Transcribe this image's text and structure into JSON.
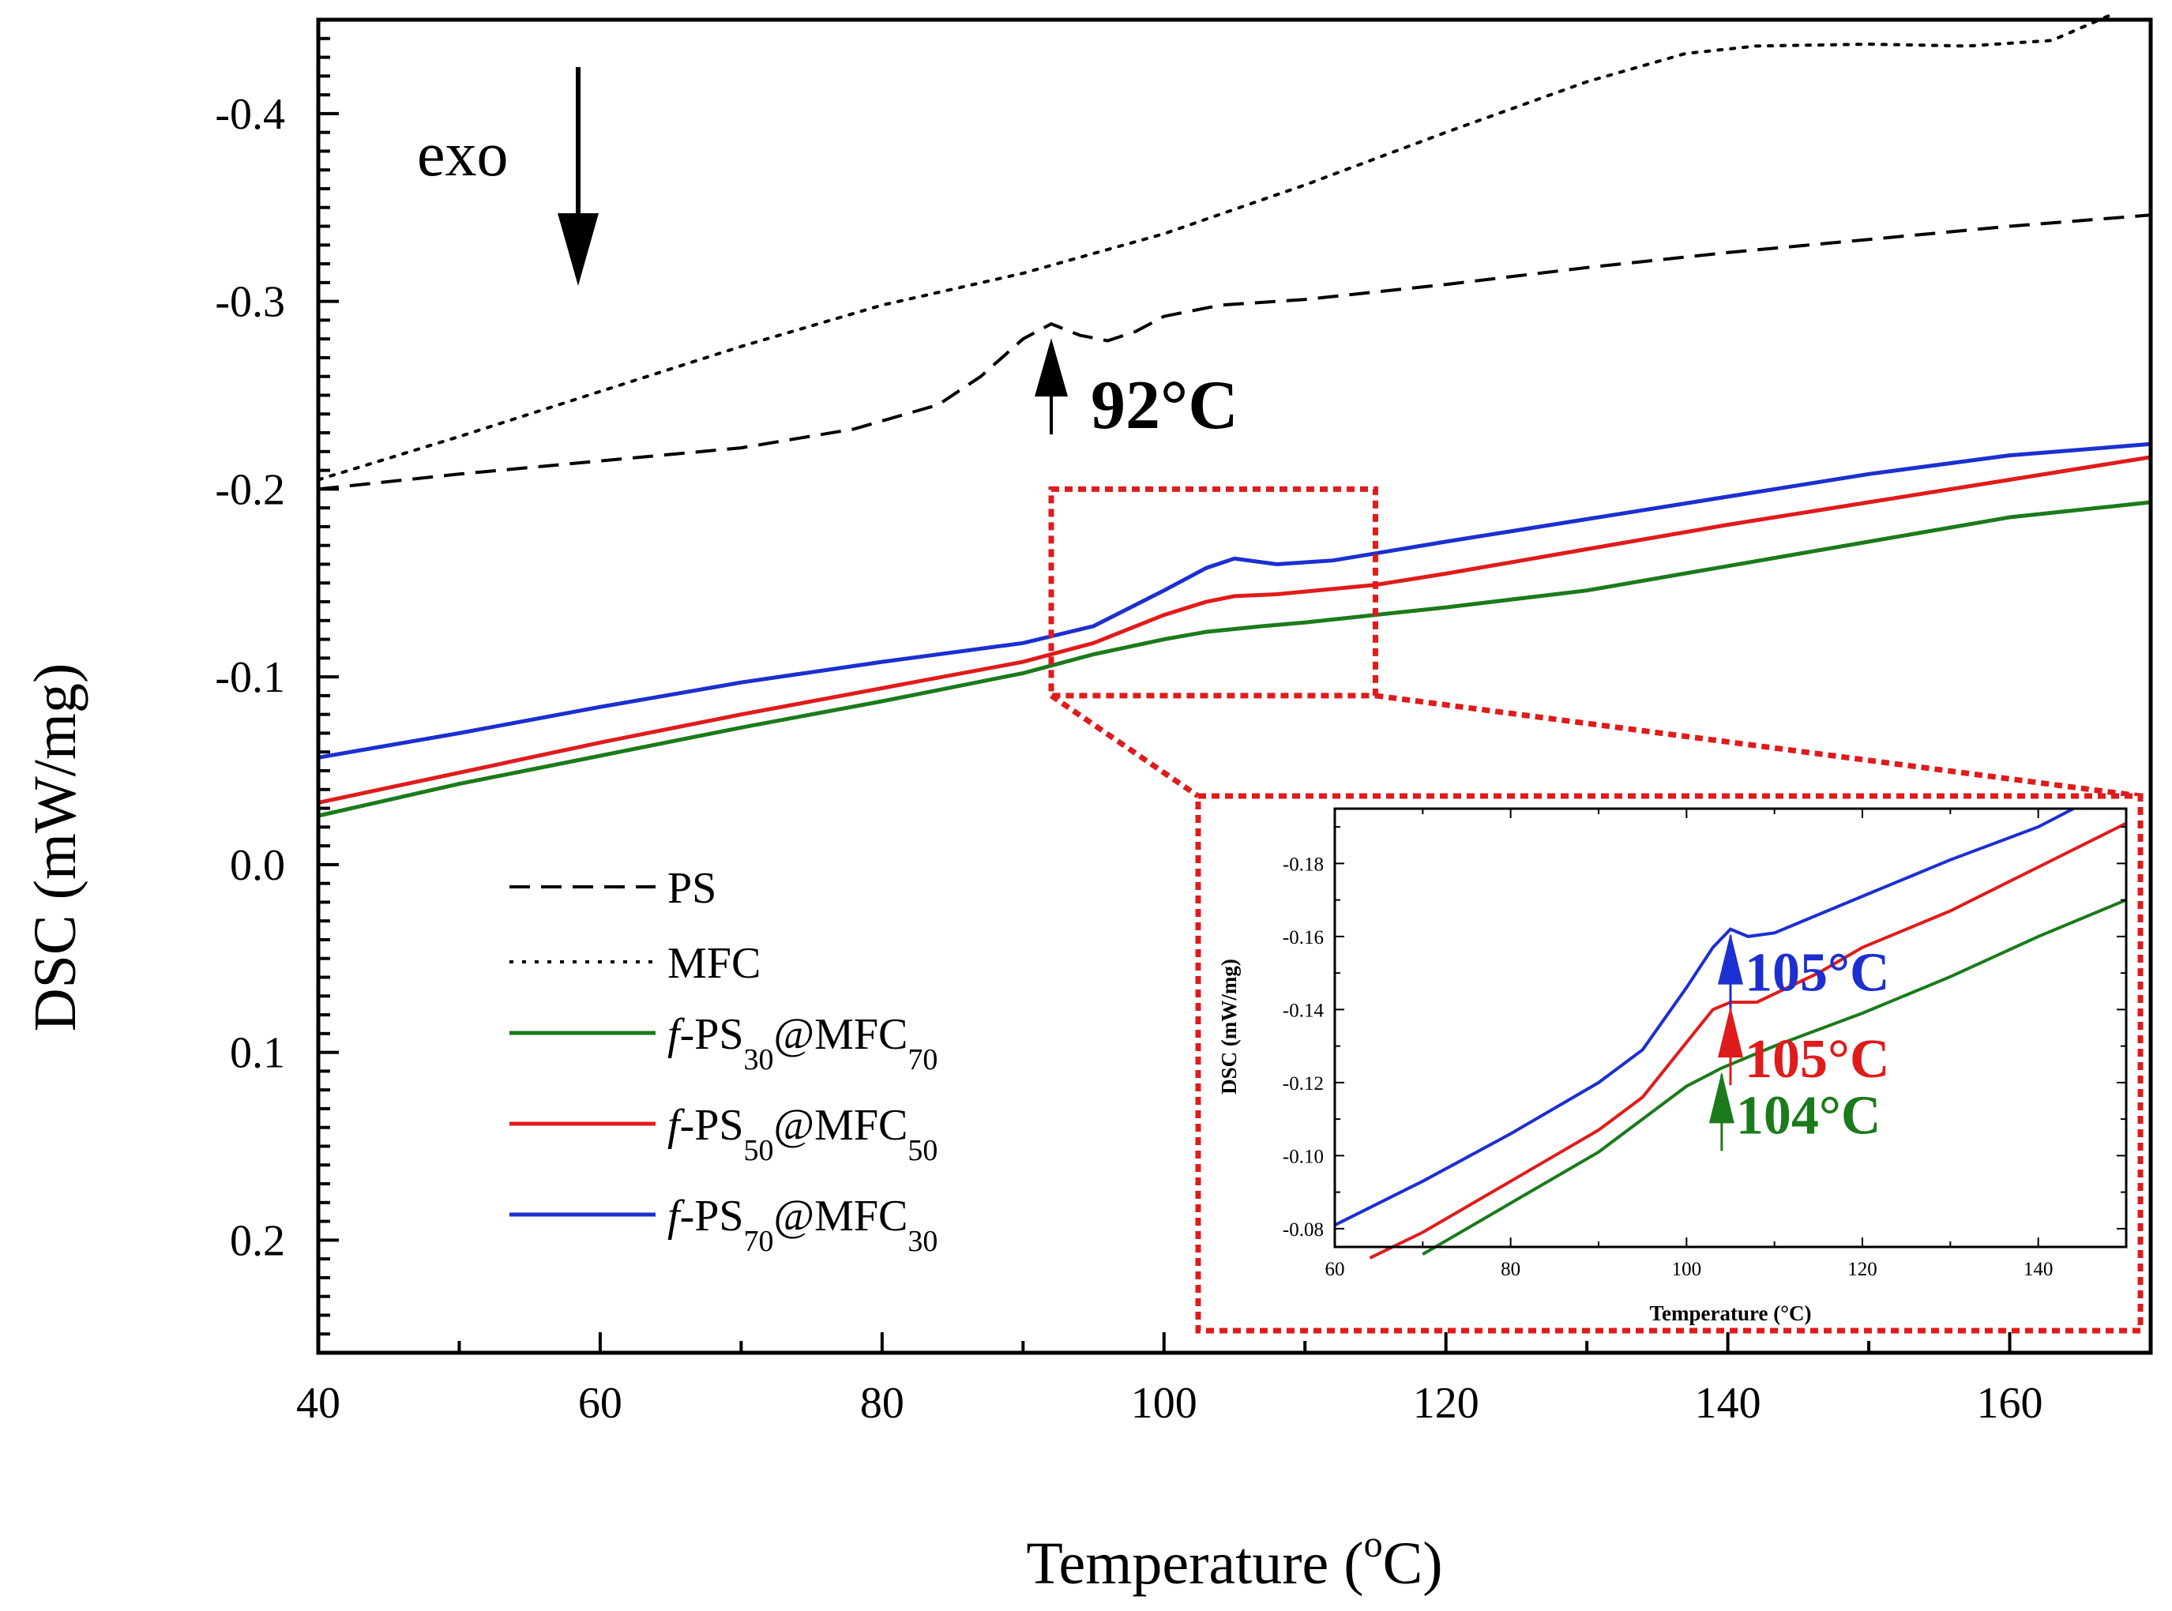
{
  "chart_data": {
    "type": "line",
    "xlabel": "Temperature (°C)",
    "xlabel_parts": {
      "pre": "Temperature (",
      "sup": "o",
      "post": "C)"
    },
    "ylabel": "DSC (mW/mg)",
    "xlim": [
      40,
      170
    ],
    "ylim": [
      0.26,
      -0.45
    ],
    "x_ticks": [
      40,
      60,
      80,
      100,
      120,
      140,
      160
    ],
    "x_tick_labels": [
      "40",
      "60",
      "80",
      "100",
      "120",
      "140",
      "160"
    ],
    "y_ticks": [
      -0.4,
      -0.3,
      -0.2,
      -0.1,
      0.0,
      0.1,
      0.2
    ],
    "y_tick_labels": [
      "-0.4",
      "-0.3",
      "-0.2",
      "-0.1",
      "0.0",
      "0.1",
      "0.2"
    ],
    "series": [
      {
        "name": "PS",
        "color": "#000000",
        "dash": "dashed",
        "points": [
          [
            40,
            -0.2
          ],
          [
            50,
            -0.208
          ],
          [
            60,
            -0.215
          ],
          [
            70,
            -0.222
          ],
          [
            78,
            -0.232
          ],
          [
            84,
            -0.245
          ],
          [
            87,
            -0.26
          ],
          [
            90,
            -0.28
          ],
          [
            92,
            -0.288
          ],
          [
            94,
            -0.282
          ],
          [
            96,
            -0.279
          ],
          [
            98,
            -0.284
          ],
          [
            100,
            -0.292
          ],
          [
            104,
            -0.298
          ],
          [
            110,
            -0.301
          ],
          [
            120,
            -0.309
          ],
          [
            130,
            -0.318
          ],
          [
            140,
            -0.326
          ],
          [
            150,
            -0.333
          ],
          [
            160,
            -0.34
          ],
          [
            170,
            -0.346
          ]
        ]
      },
      {
        "name": "MFC",
        "color": "#000000",
        "dash": "dotted",
        "points": [
          [
            40,
            -0.205
          ],
          [
            50,
            -0.228
          ],
          [
            60,
            -0.252
          ],
          [
            70,
            -0.276
          ],
          [
            80,
            -0.298
          ],
          [
            90,
            -0.315
          ],
          [
            100,
            -0.336
          ],
          [
            110,
            -0.362
          ],
          [
            120,
            -0.39
          ],
          [
            130,
            -0.417
          ],
          [
            137,
            -0.432
          ],
          [
            142,
            -0.436
          ],
          [
            150,
            -0.437
          ],
          [
            157,
            -0.436
          ],
          [
            163,
            -0.439
          ],
          [
            167,
            -0.452
          ]
        ]
      },
      {
        "name": "f-PS30@MFC70",
        "color": "#1b7a1b",
        "dash": "solid",
        "points": [
          [
            40,
            -0.026
          ],
          [
            50,
            -0.043
          ],
          [
            60,
            -0.058
          ],
          [
            70,
            -0.073
          ],
          [
            80,
            -0.087
          ],
          [
            90,
            -0.102
          ],
          [
            95,
            -0.112
          ],
          [
            100,
            -0.12
          ],
          [
            103,
            -0.124
          ],
          [
            107,
            -0.127
          ],
          [
            110,
            -0.129
          ],
          [
            120,
            -0.137
          ],
          [
            130,
            -0.146
          ],
          [
            140,
            -0.159
          ],
          [
            150,
            -0.172
          ],
          [
            160,
            -0.185
          ],
          [
            170,
            -0.193
          ]
        ]
      },
      {
        "name": "f-PS50@MFC50",
        "color": "#e01b1b",
        "dash": "solid",
        "points": [
          [
            40,
            -0.033
          ],
          [
            50,
            -0.049
          ],
          [
            60,
            -0.065
          ],
          [
            70,
            -0.08
          ],
          [
            80,
            -0.094
          ],
          [
            90,
            -0.108
          ],
          [
            95,
            -0.118
          ],
          [
            100,
            -0.133
          ],
          [
            103,
            -0.14
          ],
          [
            105,
            -0.143
          ],
          [
            108,
            -0.144
          ],
          [
            115,
            -0.149
          ],
          [
            120,
            -0.155
          ],
          [
            130,
            -0.168
          ],
          [
            140,
            -0.181
          ],
          [
            150,
            -0.193
          ],
          [
            160,
            -0.205
          ],
          [
            170,
            -0.217
          ]
        ]
      },
      {
        "name": "f-PS70@MFC30",
        "color": "#1c2fd0",
        "dash": "solid",
        "points": [
          [
            40,
            -0.057
          ],
          [
            50,
            -0.07
          ],
          [
            60,
            -0.084
          ],
          [
            70,
            -0.097
          ],
          [
            80,
            -0.108
          ],
          [
            90,
            -0.118
          ],
          [
            95,
            -0.127
          ],
          [
            100,
            -0.146
          ],
          [
            103,
            -0.158
          ],
          [
            105,
            -0.163
          ],
          [
            108,
            -0.16
          ],
          [
            112,
            -0.162
          ],
          [
            120,
            -0.172
          ],
          [
            130,
            -0.184
          ],
          [
            140,
            -0.196
          ],
          [
            150,
            -0.208
          ],
          [
            160,
            -0.218
          ],
          [
            170,
            -0.224
          ]
        ]
      }
    ],
    "legend": {
      "position": "lower-left",
      "entries": [
        {
          "label": "PS"
        },
        {
          "label": "MFC"
        },
        {
          "label_parts": [
            "f",
            "-PS",
            "30",
            "@MFC",
            "70"
          ]
        },
        {
          "label_parts": [
            "f",
            "-PS",
            "50",
            "@MFC",
            "50"
          ]
        },
        {
          "label_parts": [
            "f",
            "-PS",
            "70",
            "@MFC",
            "30"
          ]
        }
      ]
    },
    "annotations": {
      "exo": "exo",
      "ps_tg": {
        "label": "92°C",
        "x": 92,
        "y": -0.288
      },
      "zoom_region": {
        "x": [
          92,
          115
        ],
        "y": [
          -0.09,
          -0.2
        ]
      }
    },
    "inset": {
      "type": "line",
      "xlabel": "Temperature (°C)",
      "ylabel": "DSC (mW/mg)",
      "xlim": [
        60,
        150
      ],
      "ylim": [
        -0.075,
        -0.195
      ],
      "x_ticks": [
        60,
        80,
        100,
        120,
        140
      ],
      "x_tick_labels": [
        "60",
        "80",
        "100",
        "120",
        "140"
      ],
      "y_ticks": [
        -0.08,
        -0.1,
        -0.12,
        -0.14,
        -0.16,
        -0.18
      ],
      "y_tick_labels": [
        "-0.08",
        "-0.10",
        "-0.12",
        "-0.14",
        "-0.16",
        "-0.18"
      ],
      "series": [
        {
          "name": "f-PS30@MFC70",
          "color": "#1b7a1b",
          "points": [
            [
              70,
              -0.073
            ],
            [
              80,
              -0.087
            ],
            [
              90,
              -0.101
            ],
            [
              95,
              -0.11
            ],
            [
              100,
              -0.119
            ],
            [
              104,
              -0.124
            ],
            [
              110,
              -0.13
            ],
            [
              120,
              -0.139
            ],
            [
              130,
              -0.149
            ],
            [
              140,
              -0.16
            ],
            [
              150,
              -0.17
            ]
          ]
        },
        {
          "name": "f-PS50@MFC50",
          "color": "#e01b1b",
          "points": [
            [
              64,
              -0.072
            ],
            [
              70,
              -0.079
            ],
            [
              80,
              -0.093
            ],
            [
              90,
              -0.107
            ],
            [
              95,
              -0.116
            ],
            [
              100,
              -0.131
            ],
            [
              103,
              -0.14
            ],
            [
              105,
              -0.142
            ],
            [
              108,
              -0.142
            ],
            [
              115,
              -0.15
            ],
            [
              120,
              -0.157
            ],
            [
              130,
              -0.167
            ],
            [
              140,
              -0.179
            ],
            [
              150,
              -0.191
            ]
          ]
        },
        {
          "name": "f-PS70@MFC30",
          "color": "#1c2fd0",
          "points": [
            [
              60,
              -0.081
            ],
            [
              70,
              -0.093
            ],
            [
              80,
              -0.106
            ],
            [
              90,
              -0.12
            ],
            [
              95,
              -0.129
            ],
            [
              100,
              -0.146
            ],
            [
              103,
              -0.157
            ],
            [
              105,
              -0.162
            ],
            [
              107,
              -0.16
            ],
            [
              110,
              -0.161
            ],
            [
              120,
              -0.171
            ],
            [
              130,
              -0.181
            ],
            [
              140,
              -0.19
            ],
            [
              144,
              -0.195
            ]
          ]
        }
      ],
      "annotations": [
        {
          "label": "105°C",
          "color": "#1c2fd0",
          "x": 105,
          "y": -0.162
        },
        {
          "label": "105°C",
          "color": "#e01b1b",
          "x": 105,
          "y": -0.142
        },
        {
          "label": "104°C",
          "color": "#1b7a1b",
          "x": 104,
          "y": -0.124
        }
      ]
    }
  }
}
